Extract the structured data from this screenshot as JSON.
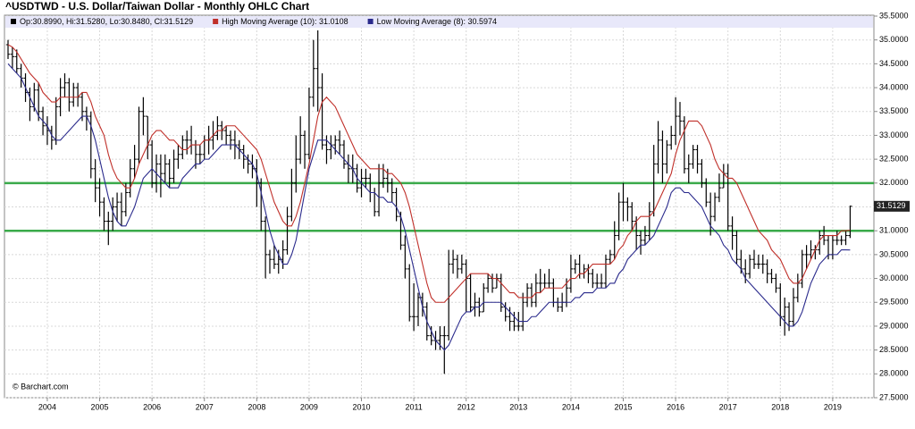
{
  "chart_data": {
    "type": "ohlc",
    "title": "^USDTWD - U.S. Dollar/Taiwan Dollar - Monthly OHLC Chart",
    "ohlc_name": "Op:30.8990, Hi:31.5280, Lo:30.8480, Cl:31.5129",
    "color": "#000000",
    "credit": "© Barchart.com",
    "categories": [
      null,
      null,
      null,
      null,
      null,
      null,
      null,
      null,
      null,
      "2004",
      null,
      null,
      null,
      null,
      null,
      null,
      null,
      null,
      null,
      null,
      null,
      "2005",
      null,
      null,
      null,
      null,
      null,
      null,
      null,
      null,
      null,
      null,
      null,
      "2006",
      null,
      null,
      null,
      null,
      null,
      null,
      null,
      null,
      null,
      null,
      null,
      "2007",
      null,
      null,
      null,
      null,
      null,
      null,
      null,
      null,
      null,
      null,
      null,
      "2008",
      null,
      null,
      null,
      null,
      null,
      null,
      null,
      null,
      null,
      null,
      null,
      "2009",
      null,
      null,
      null,
      null,
      null,
      null,
      null,
      null,
      null,
      null,
      null,
      "2010",
      null,
      null,
      null,
      null,
      null,
      null,
      null,
      null,
      null,
      null,
      null,
      "2011",
      null,
      null,
      null,
      null,
      null,
      null,
      null,
      null,
      null,
      null,
      null,
      "2012",
      null,
      null,
      null,
      null,
      null,
      null,
      null,
      null,
      null,
      null,
      null,
      "2013",
      null,
      null,
      null,
      null,
      null,
      null,
      null,
      null,
      null,
      null,
      null,
      "2014",
      null,
      null,
      null,
      null,
      null,
      null,
      null,
      null,
      null,
      null,
      null,
      "2015",
      null,
      null,
      null,
      null,
      null,
      null,
      null,
      null,
      null,
      null,
      null,
      "2016",
      null,
      null,
      null,
      null,
      null,
      null,
      null,
      null,
      null,
      null,
      null,
      "2017",
      null,
      null,
      null,
      null,
      null,
      null,
      null,
      null,
      null,
      null,
      null,
      "2018",
      null,
      null,
      null,
      null,
      null,
      null,
      null,
      null,
      null,
      null,
      null,
      "2019",
      null,
      null,
      null,
      null
    ],
    "open": [
      34.9,
      34.7,
      34.65,
      34.4,
      34.2,
      33.9,
      33.6,
      33.95,
      33.5,
      33.2,
      33.1,
      32.9,
      33.6,
      34.0,
      34.1,
      33.7,
      34.0,
      33.8,
      33.5,
      33.4,
      32.3,
      31.9,
      31.6,
      31.2,
      31.2,
      31.5,
      31.6,
      31.4,
      31.8,
      32.3,
      32.5,
      33.5,
      33.4,
      32.8,
      32.0,
      32.4,
      32.2,
      32.4,
      32.1,
      32.5,
      32.6,
      32.9,
      32.9,
      32.8,
      32.6,
      32.6,
      32.9,
      32.9,
      33.0,
      33.2,
      33.1,
      33.0,
      32.9,
      32.8,
      32.7,
      32.5,
      32.4,
      32.3,
      32.0,
      31.2,
      30.5,
      30.4,
      30.3,
      30.4,
      30.6,
      31.3,
      32.0,
      32.5,
      33.0,
      32.6,
      33.8,
      34.4,
      34.0,
      32.8,
      32.7,
      32.8,
      32.9,
      32.8,
      32.4,
      32.3,
      32.3,
      31.9,
      32.1,
      32.1,
      31.8,
      31.4,
      32.0,
      32.1,
      32.0,
      31.8,
      31.3,
      30.7,
      30.2,
      29.2,
      29.2,
      29.6,
      29.4,
      28.8,
      28.7,
      28.7,
      28.8,
      28.8,
      30.3,
      30.4,
      30.2,
      30.3,
      30.0,
      29.4,
      29.5,
      29.3,
      29.8,
      30.0,
      29.8,
      30.0,
      29.4,
      29.2,
      29.1,
      29.0,
      29.0,
      29.5,
      29.8,
      29.5,
      29.9,
      29.9,
      29.9,
      29.9,
      29.5,
      29.4,
      29.5,
      29.8,
      30.2,
      30.3,
      30.1,
      30.2,
      30.1,
      29.9,
      29.9,
      29.9,
      30.4,
      30.5,
      30.9,
      31.6,
      31.6,
      31.5,
      31.2,
      30.9,
      30.8,
      30.9,
      31.4,
      32.4,
      32.9,
      32.4,
      32.8,
      33.0,
      33.4,
      33.3,
      32.3,
      32.4,
      32.7,
      32.4,
      32.0,
      31.6,
      31.3,
      31.7,
      31.9,
      32.2,
      31.1,
      30.9,
      30.4,
      30.2,
      30.1,
      30.4,
      30.3,
      30.3,
      30.3,
      30.1,
      30.0,
      29.8,
      29.2,
      29.4,
      29.1,
      29.6,
      29.9,
      30.5,
      30.5,
      30.6,
      30.6,
      30.9,
      30.8,
      30.5,
      30.8,
      30.8,
      30.8,
      30.899
    ],
    "high": [
      35.0,
      34.85,
      34.8,
      34.5,
      34.3,
      34.0,
      34.1,
      34.1,
      33.6,
      33.4,
      33.2,
      33.8,
      34.2,
      34.3,
      34.2,
      34.1,
      34.1,
      33.9,
      33.6,
      33.5,
      32.5,
      32.1,
      31.7,
      31.4,
      31.7,
      31.8,
      31.8,
      32.0,
      32.5,
      32.8,
      33.6,
      33.8,
      33.4,
      32.9,
      32.6,
      32.6,
      32.6,
      32.5,
      32.7,
      32.8,
      33.0,
      33.1,
      33.2,
      32.9,
      32.8,
      33.0,
      33.2,
      33.3,
      33.4,
      33.3,
      33.2,
      33.1,
      33.1,
      32.9,
      32.8,
      32.6,
      32.6,
      32.5,
      32.1,
      31.3,
      30.6,
      30.7,
      30.6,
      30.8,
      31.5,
      32.3,
      33.0,
      33.4,
      33.1,
      34.0,
      35.0,
      35.2,
      34.3,
      33.0,
      33.0,
      33.0,
      33.1,
      32.9,
      32.6,
      32.6,
      32.4,
      32.3,
      32.3,
      32.2,
      31.9,
      32.4,
      32.4,
      32.3,
      32.1,
      31.9,
      31.4,
      30.9,
      30.3,
      29.9,
      29.7,
      29.7,
      29.5,
      29.0,
      28.9,
      29.0,
      29.0,
      30.6,
      30.6,
      30.5,
      30.5,
      30.4,
      30.1,
      29.7,
      29.6,
      29.9,
      30.1,
      30.1,
      30.1,
      30.1,
      29.5,
      29.4,
      29.3,
      29.3,
      29.7,
      29.9,
      29.9,
      30.1,
      30.2,
      30.1,
      30.2,
      30.0,
      29.6,
      29.7,
      30.0,
      30.5,
      30.4,
      30.5,
      30.3,
      30.3,
      30.2,
      30.1,
      30.1,
      30.5,
      30.6,
      31.2,
      31.8,
      32.0,
      31.7,
      31.6,
      31.3,
      31.0,
      31.1,
      31.6,
      32.8,
      33.3,
      33.1,
      32.9,
      33.2,
      33.8,
      33.7,
      33.4,
      32.6,
      32.8,
      32.8,
      32.5,
      32.1,
      31.8,
      31.8,
      32.2,
      32.4,
      32.4,
      31.3,
      31.0,
      30.6,
      30.4,
      30.5,
      30.6,
      30.5,
      30.5,
      30.4,
      30.2,
      30.1,
      29.9,
      29.6,
      29.5,
      29.8,
      30.1,
      30.6,
      30.7,
      30.8,
      30.7,
      31.0,
      31.1,
      30.9,
      30.9,
      31.0,
      30.9,
      31.0,
      31.528
    ],
    "low": [
      34.6,
      34.4,
      34.3,
      34.0,
      33.7,
      33.3,
      33.5,
      33.3,
      33.0,
      32.8,
      32.7,
      32.8,
      33.4,
      33.8,
      33.5,
      33.6,
      33.6,
      33.3,
      33.1,
      32.1,
      31.6,
      31.3,
      31.0,
      30.7,
      31.0,
      31.2,
      31.1,
      31.3,
      31.7,
      32.1,
      32.4,
      33.0,
      32.5,
      31.9,
      31.8,
      31.7,
      32.0,
      31.9,
      32.0,
      32.3,
      32.5,
      32.6,
      32.6,
      32.3,
      32.4,
      32.5,
      32.6,
      32.7,
      32.9,
      32.9,
      32.8,
      32.7,
      32.5,
      32.5,
      32.3,
      32.2,
      32.1,
      31.5,
      31.0,
      30.0,
      30.1,
      30.2,
      30.1,
      30.2,
      30.5,
      31.2,
      31.8,
      32.4,
      32.3,
      32.5,
      33.6,
      33.5,
      32.7,
      32.4,
      32.5,
      32.6,
      32.6,
      32.3,
      32.0,
      32.0,
      31.8,
      31.7,
      31.9,
      31.6,
      31.3,
      31.3,
      31.9,
      31.8,
      31.6,
      31.2,
      30.6,
      30.0,
      29.1,
      28.9,
      29.0,
      29.2,
      28.7,
      28.6,
      28.5,
      28.5,
      28.0,
      28.7,
      30.1,
      30.0,
      30.1,
      29.3,
      29.3,
      29.2,
      29.2,
      29.3,
      29.7,
      29.7,
      29.8,
      29.3,
      29.1,
      28.9,
      28.9,
      28.9,
      28.9,
      29.4,
      29.4,
      29.4,
      29.7,
      29.8,
      29.8,
      29.4,
      29.3,
      29.3,
      29.4,
      29.7,
      30.1,
      30.0,
      30.0,
      29.9,
      29.8,
      29.8,
      29.8,
      29.8,
      30.3,
      30.4,
      30.8,
      31.2,
      31.2,
      31.0,
      30.6,
      30.5,
      30.7,
      30.8,
      31.3,
      32.2,
      32.0,
      32.2,
      32.7,
      32.8,
      33.0,
      32.2,
      32.0,
      32.3,
      32.2,
      31.9,
      31.5,
      30.9,
      31.2,
      31.6,
      31.9,
      31.0,
      30.6,
      30.3,
      30.1,
      29.9,
      30.0,
      30.2,
      30.2,
      30.1,
      29.9,
      29.9,
      29.7,
      29.0,
      28.8,
      28.9,
      29.0,
      29.5,
      29.8,
      30.2,
      30.4,
      30.4,
      30.5,
      30.7,
      30.4,
      30.4,
      30.7,
      30.7,
      30.7,
      30.848
    ],
    "close": [
      34.7,
      34.65,
      34.4,
      34.2,
      33.9,
      33.6,
      33.95,
      33.5,
      33.2,
      33.1,
      32.9,
      33.6,
      34.0,
      34.1,
      33.7,
      34.0,
      33.8,
      33.5,
      33.4,
      32.3,
      31.9,
      31.6,
      31.2,
      31.2,
      31.5,
      31.6,
      31.4,
      31.8,
      32.3,
      32.5,
      33.5,
      33.4,
      32.8,
      32.0,
      32.4,
      32.2,
      32.4,
      32.1,
      32.5,
      32.6,
      32.9,
      32.9,
      32.8,
      32.6,
      32.6,
      32.9,
      32.9,
      33.0,
      33.2,
      33.1,
      33.0,
      32.9,
      32.8,
      32.7,
      32.5,
      32.4,
      32.3,
      32.0,
      31.2,
      30.5,
      30.4,
      30.3,
      30.4,
      30.6,
      31.3,
      32.0,
      32.5,
      33.0,
      32.6,
      33.8,
      34.4,
      34.0,
      32.8,
      32.7,
      32.8,
      32.9,
      32.8,
      32.4,
      32.3,
      32.3,
      31.9,
      32.1,
      32.1,
      31.8,
      31.4,
      32.0,
      32.1,
      32.0,
      31.8,
      31.3,
      30.7,
      30.2,
      29.2,
      29.2,
      29.6,
      29.4,
      28.8,
      28.7,
      28.7,
      28.8,
      28.8,
      30.3,
      30.4,
      30.2,
      30.3,
      30.0,
      29.4,
      29.5,
      29.3,
      29.8,
      30.0,
      29.8,
      30.0,
      29.4,
      29.2,
      29.1,
      29.0,
      29.0,
      29.5,
      29.8,
      29.5,
      29.9,
      29.9,
      29.9,
      29.9,
      29.5,
      29.4,
      29.5,
      29.8,
      30.2,
      30.3,
      30.1,
      30.2,
      30.1,
      29.9,
      29.9,
      29.9,
      30.4,
      30.5,
      30.9,
      31.6,
      31.6,
      31.5,
      31.2,
      30.9,
      30.8,
      30.9,
      31.4,
      32.4,
      32.9,
      32.4,
      32.8,
      33.0,
      33.4,
      33.3,
      32.3,
      32.4,
      32.7,
      32.4,
      32.0,
      31.6,
      31.3,
      31.7,
      31.9,
      32.2,
      31.1,
      30.9,
      30.4,
      30.2,
      30.1,
      30.4,
      30.3,
      30.3,
      30.3,
      30.1,
      30.0,
      29.8,
      29.2,
      29.4,
      29.1,
      29.6,
      29.9,
      30.5,
      30.5,
      30.6,
      30.6,
      30.9,
      30.8,
      30.5,
      30.8,
      30.8,
      30.8,
      30.9,
      31.5129
    ],
    "series": [
      {
        "name": "High Moving Average (10): 31.0108",
        "color": "#c0302a",
        "values": [
          34.9,
          34.85,
          34.75,
          34.6,
          34.45,
          34.3,
          34.2,
          34.1,
          33.9,
          33.8,
          33.7,
          33.7,
          33.8,
          33.8,
          33.8,
          33.8,
          33.8,
          33.9,
          33.9,
          33.7,
          33.4,
          33.2,
          33.0,
          32.6,
          32.3,
          32.1,
          32.0,
          31.9,
          31.9,
          32.1,
          32.4,
          32.6,
          32.8,
          33.0,
          33.1,
          33.1,
          33.0,
          32.9,
          32.9,
          32.8,
          32.7,
          32.7,
          32.8,
          32.8,
          32.8,
          32.9,
          32.9,
          33.0,
          33.1,
          33.1,
          33.2,
          33.2,
          33.2,
          33.1,
          33.0,
          32.9,
          32.8,
          32.7,
          32.5,
          32.2,
          31.9,
          31.6,
          31.4,
          31.2,
          31.1,
          31.1,
          31.3,
          31.6,
          32.0,
          32.4,
          32.9,
          33.4,
          33.7,
          33.8,
          33.7,
          33.6,
          33.4,
          33.2,
          33.0,
          32.8,
          32.6,
          32.5,
          32.4,
          32.3,
          32.3,
          32.3,
          32.3,
          32.2,
          32.2,
          32.1,
          32.0,
          31.8,
          31.5,
          31.1,
          30.7,
          30.3,
          29.9,
          29.6,
          29.5,
          29.5,
          29.5,
          29.6,
          29.7,
          29.8,
          29.9,
          30.0,
          30.1,
          30.1,
          30.1,
          30.1,
          30.1,
          30.0,
          30.0,
          29.9,
          29.8,
          29.7,
          29.7,
          29.6,
          29.6,
          29.6,
          29.6,
          29.7,
          29.7,
          29.8,
          29.8,
          29.8,
          29.8,
          29.8,
          29.9,
          30.0,
          30.0,
          30.1,
          30.1,
          30.2,
          30.3,
          30.3,
          30.3,
          30.3,
          30.3,
          30.4,
          30.6,
          30.7,
          30.9,
          31.0,
          31.2,
          31.3,
          31.3,
          31.3,
          31.4,
          31.6,
          31.8,
          32.0,
          32.2,
          32.6,
          32.9,
          33.1,
          33.3,
          33.3,
          33.3,
          33.2,
          33.0,
          32.8,
          32.5,
          32.3,
          32.2,
          32.1,
          32.1,
          32.0,
          31.8,
          31.6,
          31.4,
          31.2,
          31.0,
          30.9,
          30.8,
          30.6,
          30.5,
          30.4,
          30.2,
          30.0,
          29.9,
          29.9,
          30.0,
          30.2,
          30.4,
          30.6,
          30.8,
          30.9,
          30.9,
          30.9,
          30.9,
          31.0,
          31.0,
          31.0108
        ]
      },
      {
        "name": "Low Moving Average (8): 30.5974",
        "color": "#2a2a8c",
        "values": [
          34.5,
          34.4,
          34.3,
          34.2,
          34.0,
          33.8,
          33.6,
          33.4,
          33.3,
          33.2,
          33.0,
          32.9,
          32.9,
          33.0,
          33.1,
          33.2,
          33.3,
          33.4,
          33.4,
          33.2,
          32.9,
          32.5,
          32.1,
          31.7,
          31.4,
          31.2,
          31.1,
          31.1,
          31.3,
          31.5,
          31.8,
          32.1,
          32.2,
          32.3,
          32.2,
          32.1,
          32.0,
          31.9,
          31.9,
          31.9,
          32.1,
          32.2,
          32.3,
          32.4,
          32.4,
          32.5,
          32.5,
          32.6,
          32.7,
          32.8,
          32.8,
          32.8,
          32.8,
          32.7,
          32.6,
          32.5,
          32.4,
          32.2,
          31.8,
          31.4,
          31.0,
          30.7,
          30.5,
          30.3,
          30.3,
          30.5,
          30.8,
          31.3,
          31.8,
          32.3,
          32.6,
          32.9,
          32.9,
          32.9,
          32.8,
          32.7,
          32.6,
          32.5,
          32.4,
          32.3,
          32.1,
          32.0,
          31.9,
          31.8,
          31.8,
          31.7,
          31.7,
          31.6,
          31.6,
          31.5,
          31.3,
          31.0,
          30.6,
          30.2,
          29.8,
          29.4,
          29.1,
          28.9,
          28.7,
          28.6,
          28.5,
          28.6,
          28.8,
          29.0,
          29.2,
          29.3,
          29.3,
          29.4,
          29.4,
          29.5,
          29.5,
          29.5,
          29.5,
          29.5,
          29.4,
          29.3,
          29.2,
          29.1,
          29.1,
          29.1,
          29.2,
          29.2,
          29.3,
          29.4,
          29.5,
          29.5,
          29.5,
          29.5,
          29.5,
          29.5,
          29.6,
          29.6,
          29.7,
          29.7,
          29.7,
          29.8,
          29.8,
          29.8,
          29.9,
          29.9,
          30.1,
          30.2,
          30.4,
          30.5,
          30.6,
          30.7,
          30.7,
          30.8,
          30.9,
          31.1,
          31.3,
          31.5,
          31.8,
          31.9,
          31.9,
          31.8,
          31.8,
          31.7,
          31.6,
          31.5,
          31.3,
          31.1,
          31.0,
          30.9,
          30.7,
          30.6,
          30.4,
          30.3,
          30.2,
          30.0,
          29.9,
          29.8,
          29.7,
          29.6,
          29.5,
          29.4,
          29.3,
          29.2,
          29.1,
          29.0,
          29.0,
          29.1,
          29.3,
          29.6,
          29.9,
          30.1,
          30.3,
          30.4,
          30.5,
          30.5,
          30.5,
          30.6,
          30.6,
          30.5974
        ]
      }
    ],
    "hlines": [
      32,
      31
    ],
    "hline_color": "#3aaa4a",
    "ylim": [
      27.5,
      35.5
    ],
    "yticks": [
      {
        "value": 27.5,
        "label": "27.5000"
      },
      {
        "value": 28,
        "label": "28.0000"
      },
      {
        "value": 28.5,
        "label": "28.5000"
      },
      {
        "value": 29,
        "label": "29.0000"
      },
      {
        "value": 29.5,
        "label": "29.5000"
      },
      {
        "value": 30,
        "label": "30.0000"
      },
      {
        "value": 30.5,
        "label": "30.5000"
      },
      {
        "value": 31,
        "label": "31.0000"
      },
      {
        "value": 31.5,
        "label": "31.5000"
      },
      {
        "value": 32,
        "label": "32.0000"
      },
      {
        "value": 32.5,
        "label": "32.5000"
      },
      {
        "value": 33,
        "label": "33.0000"
      },
      {
        "value": 33.5,
        "label": "33.5000"
      },
      {
        "value": 34,
        "label": "34.0000"
      },
      {
        "value": 34.5,
        "label": "34.5000"
      },
      {
        "value": 35,
        "label": "35.0000"
      },
      {
        "value": 35.5,
        "label": "35.5000"
      }
    ],
    "grid": true
  }
}
